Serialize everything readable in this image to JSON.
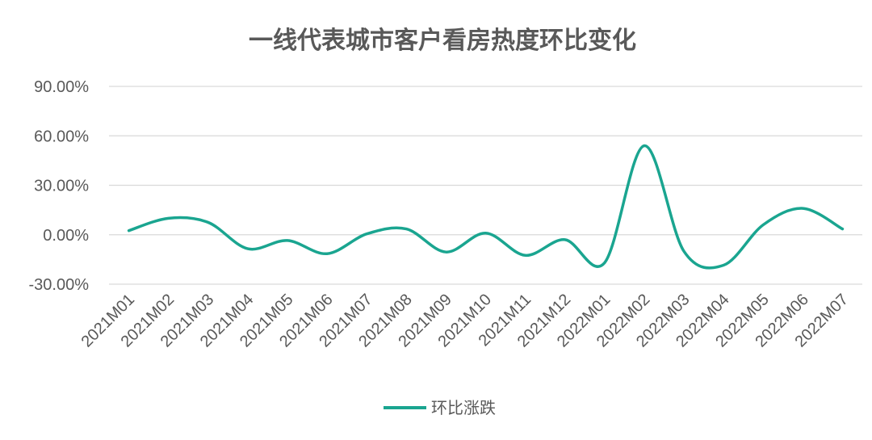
{
  "chart_data": {
    "type": "line",
    "title": "一线代表城市客户看房热度环比变化",
    "xlabel": "",
    "ylabel": "",
    "categories": [
      "2021M01",
      "2021M02",
      "2021M03",
      "2021M04",
      "2021M05",
      "2021M06",
      "2021M07",
      "2021M08",
      "2021M09",
      "2021M10",
      "2021M11",
      "2021M12",
      "2022M01",
      "2022M02",
      "2022M03",
      "2022M04",
      "2022M05",
      "2022M06",
      "2022M07"
    ],
    "series": [
      {
        "name": "环比涨跌",
        "values": [
          2.5,
          10.0,
          7.5,
          -8.5,
          -3.5,
          -11.5,
          0.5,
          3.5,
          -10.5,
          1.0,
          -12.5,
          -3.0,
          -17.0,
          54.0,
          -10.0,
          -18.5,
          6.0,
          16.0,
          3.5
        ]
      }
    ],
    "ylim": [
      -30,
      90
    ],
    "yticks": [
      "90.00%",
      "60.00%",
      "30.00%",
      "0.00%",
      "-30.00%"
    ],
    "ytick_values": [
      90,
      60,
      30,
      0,
      -30
    ],
    "grid": true,
    "legend_position": "bottom",
    "colors": {
      "series": "#1aa590",
      "grid": "#d9d9d9",
      "text": "#595959"
    }
  }
}
